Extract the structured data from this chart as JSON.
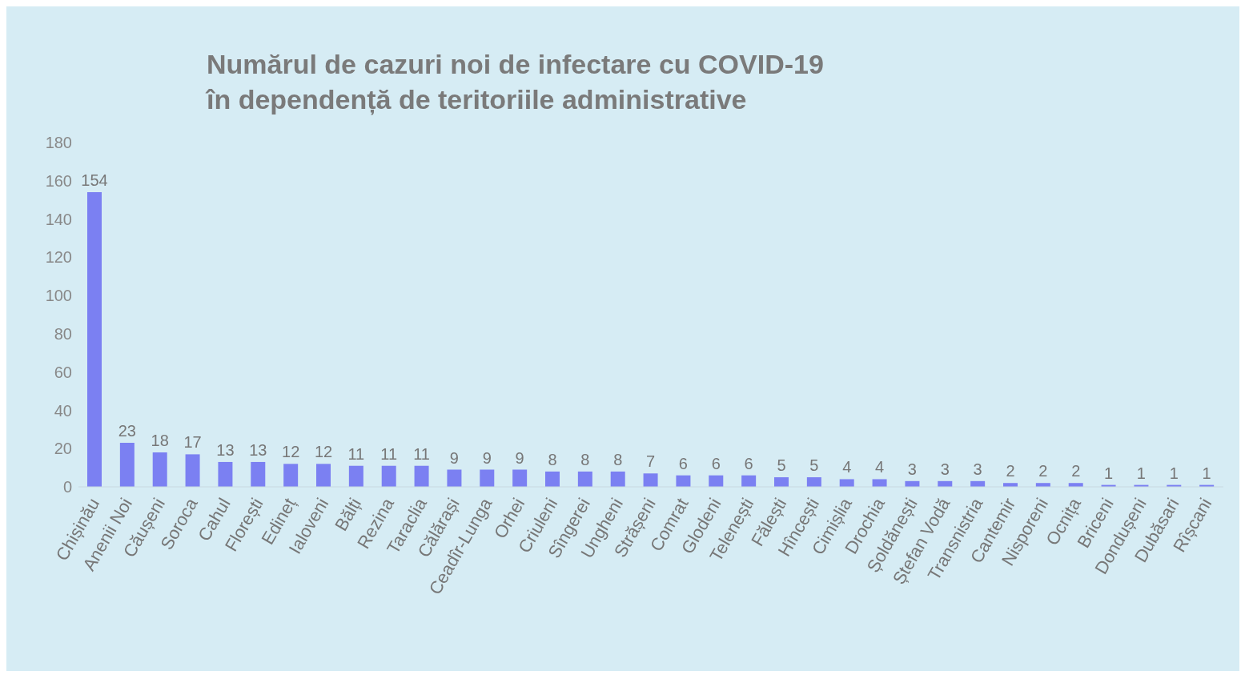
{
  "chart_data": {
    "type": "bar",
    "title": "Numărul de cazuri noi de infectare cu COVID-19\nîn dependență de teritoriile administrative",
    "categories": [
      "Chișinău",
      "Anenii Noi",
      "Căușeni",
      "Soroca",
      "Cahul",
      "Florești",
      "Edineț",
      "Ialoveni",
      "Bălți",
      "Rezina",
      "Taraclia",
      "Călărași",
      "Ceadîr-Lunga",
      "Orhei",
      "Criuleni",
      "Sîngerei",
      "Ungheni",
      "Strășeni",
      "Comrat",
      "Glodeni",
      "Telenești",
      "Fălești",
      "Hîncești",
      "Cimișlia",
      "Drochia",
      "Șoldănești",
      "Ștefan Vodă",
      "Transnistria",
      "Cantemir",
      "Nisporeni",
      "Ocnița",
      "Briceni",
      "Dondușeni",
      "Dubăsari",
      "Rîșcani"
    ],
    "values": [
      154,
      23,
      18,
      17,
      13,
      13,
      12,
      12,
      11,
      11,
      11,
      9,
      9,
      9,
      8,
      8,
      8,
      7,
      6,
      6,
      6,
      5,
      5,
      4,
      4,
      3,
      3,
      3,
      2,
      2,
      2,
      1,
      1,
      1,
      1
    ],
    "color": "#7b80f2",
    "ylim": [
      0,
      180
    ],
    "yticks": [
      0,
      20,
      40,
      60,
      80,
      100,
      120,
      140,
      160,
      180
    ],
    "data_labels": true
  }
}
